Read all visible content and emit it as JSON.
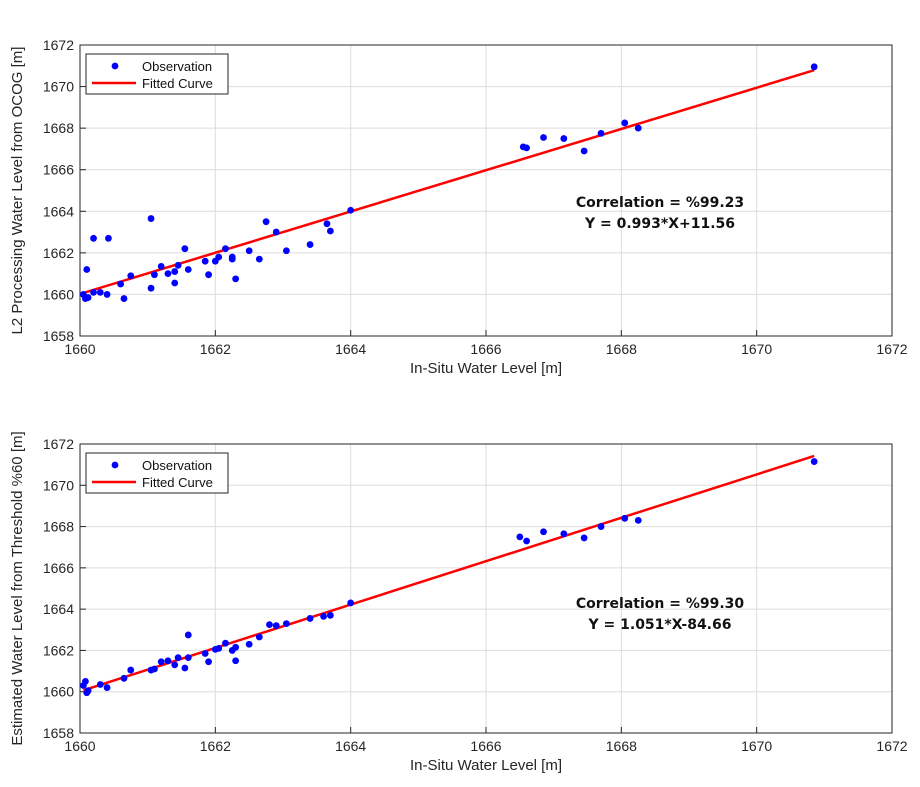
{
  "chart_data": [
    {
      "type": "scatter",
      "xlabel": "In-Situ Water Level [m]",
      "ylabel": "L2 Processing Water Level from OCOG [m]",
      "xlim": [
        1660,
        1672
      ],
      "ylim": [
        1658,
        1672
      ],
      "xticks": [
        1660,
        1662,
        1664,
        1666,
        1668,
        1670,
        1672
      ],
      "yticks": [
        1658,
        1660,
        1662,
        1664,
        1666,
        1668,
        1670,
        1672
      ],
      "grid": true,
      "legend_position": "top-left",
      "annotation_lines": [
        "Correlation = %99.23",
        "Y = 0.993*X+11.56"
      ],
      "series": [
        {
          "name": "Observation",
          "kind": "points",
          "color": "#0000ff",
          "x": [
            1660.05,
            1660.08,
            1660.12,
            1660.1,
            1660.2,
            1660.3,
            1660.4,
            1660.2,
            1660.42,
            1660.6,
            1660.65,
            1660.75,
            1661.05,
            1661.05,
            1661.1,
            1661.2,
            1661.3,
            1661.4,
            1661.4,
            1661.45,
            1661.55,
            1661.6,
            1661.85,
            1661.9,
            1662.0,
            1662.05,
            1662.15,
            1662.25,
            1662.25,
            1662.3,
            1662.5,
            1662.65,
            1662.75,
            1662.9,
            1663.05,
            1663.4,
            1663.65,
            1663.7,
            1664.0,
            1666.55,
            1666.6,
            1666.85,
            1667.15,
            1667.45,
            1667.7,
            1668.05,
            1668.25,
            1670.85
          ],
          "y": [
            1660.0,
            1659.8,
            1659.85,
            1661.2,
            1662.7,
            1660.1,
            1660.0,
            1660.1,
            1662.7,
            1660.5,
            1659.8,
            1660.9,
            1663.65,
            1660.3,
            1660.95,
            1661.35,
            1661.0,
            1661.1,
            1660.55,
            1661.4,
            1662.2,
            1661.2,
            1661.6,
            1660.95,
            1661.6,
            1661.8,
            1662.2,
            1661.7,
            1661.8,
            1660.75,
            1662.1,
            1661.7,
            1663.5,
            1663.0,
            1662.1,
            1662.4,
            1663.4,
            1663.05,
            1664.05,
            1667.1,
            1667.05,
            1667.55,
            1667.5,
            1666.9,
            1667.75,
            1668.25,
            1668.0,
            1670.95
          ]
        },
        {
          "name": "Fitted Curve",
          "kind": "line",
          "color": "#ff0000",
          "x": [
            1660.05,
            1670.85
          ],
          "y": [
            1660.07,
            1670.79
          ]
        }
      ]
    },
    {
      "type": "scatter",
      "xlabel": "In-Situ Water Level [m]",
      "ylabel": "Estimated Water Level from Threshold %60 [m]",
      "xlim": [
        1660,
        1672
      ],
      "ylim": [
        1658,
        1672
      ],
      "xticks": [
        1660,
        1662,
        1664,
        1666,
        1668,
        1670,
        1672
      ],
      "yticks": [
        1658,
        1660,
        1662,
        1664,
        1666,
        1668,
        1670,
        1672
      ],
      "grid": true,
      "legend_position": "top-left",
      "annotation_lines": [
        "Correlation = %99.30",
        "Y = 1.051*X-84.66"
      ],
      "series": [
        {
          "name": "Observation",
          "kind": "points",
          "color": "#0000ff",
          "x": [
            1660.05,
            1660.1,
            1660.12,
            1660.08,
            1660.3,
            1660.4,
            1660.65,
            1660.75,
            1661.05,
            1661.1,
            1661.2,
            1661.3,
            1661.4,
            1661.45,
            1661.55,
            1661.6,
            1661.6,
            1661.85,
            1661.9,
            1662.0,
            1662.05,
            1662.15,
            1662.25,
            1662.3,
            1662.3,
            1662.5,
            1662.65,
            1662.8,
            1662.9,
            1663.05,
            1663.4,
            1663.6,
            1663.7,
            1664.0,
            1666.5,
            1666.6,
            1666.85,
            1667.15,
            1667.45,
            1667.7,
            1668.05,
            1668.25,
            1670.85
          ],
          "y": [
            1660.3,
            1659.95,
            1660.05,
            1660.5,
            1660.35,
            1660.2,
            1660.65,
            1661.05,
            1661.05,
            1661.1,
            1661.45,
            1661.5,
            1661.3,
            1661.65,
            1661.15,
            1662.75,
            1661.65,
            1661.85,
            1661.45,
            1662.05,
            1662.1,
            1662.35,
            1662.0,
            1662.15,
            1661.5,
            1662.3,
            1662.65,
            1663.25,
            1663.2,
            1663.3,
            1663.55,
            1663.65,
            1663.7,
            1664.3,
            1667.5,
            1667.3,
            1667.75,
            1667.65,
            1667.45,
            1668.0,
            1668.4,
            1668.3,
            1671.15
          ]
        },
        {
          "name": "Fitted Curve",
          "kind": "line",
          "color": "#ff0000",
          "x": [
            1660.05,
            1670.85
          ],
          "y": [
            1660.07,
            1671.42
          ]
        }
      ]
    }
  ]
}
